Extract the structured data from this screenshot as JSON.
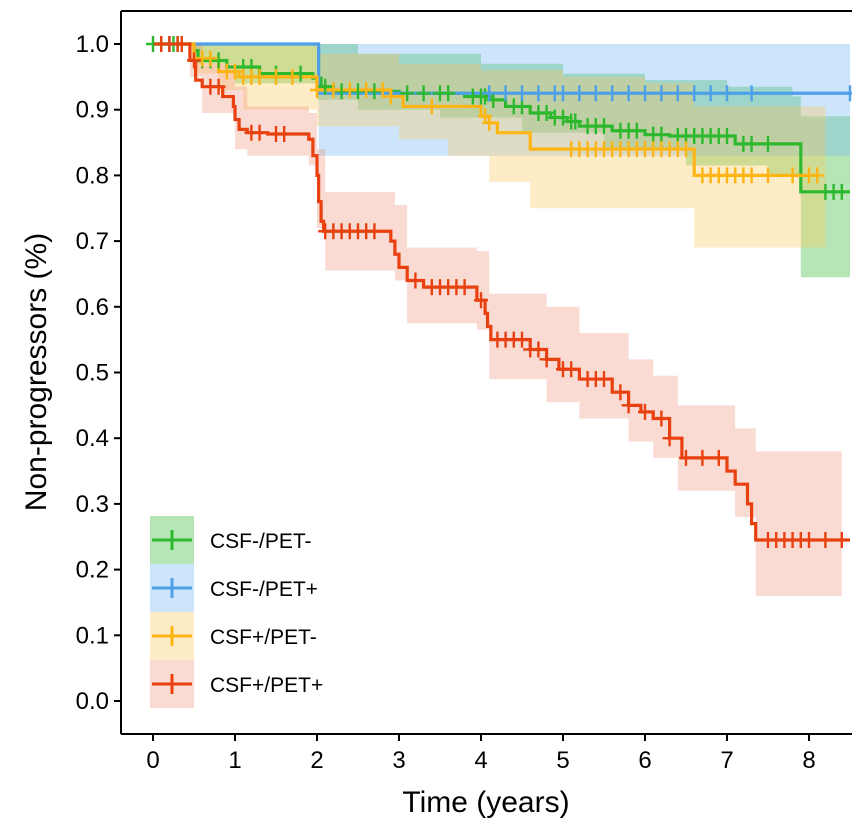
{
  "chart_data": {
    "type": "line",
    "subtype": "kaplan-meier survival curves with 95% confidence bands and censor marks",
    "title": "",
    "xlabel": "Time (years)",
    "ylabel": "Non-progressors (%)",
    "xlim": [
      -0.4,
      8.5
    ],
    "ylim": [
      -0.04,
      1.05
    ],
    "xticks": [
      0,
      1,
      2,
      3,
      4,
      5,
      6,
      7,
      8
    ],
    "xtick_labels": [
      "0",
      "1",
      "2",
      "3",
      "4",
      "5",
      "6",
      "7",
      "8"
    ],
    "yticks": [
      0.0,
      0.1,
      0.2,
      0.3,
      0.4,
      0.5,
      0.6,
      0.7,
      0.8,
      0.9,
      1.0
    ],
    "ytick_labels": [
      "0.0",
      "0.1",
      "0.2",
      "0.3",
      "0.4",
      "0.5",
      "0.6",
      "0.7",
      "0.8",
      "0.9",
      "1.0"
    ],
    "grid": false,
    "legend_position": "bottom-left",
    "series": [
      {
        "name": "CSF-/PET-",
        "color": "#2DB82D",
        "band_color": "#2DB82D",
        "steps": [
          [
            0,
            1.0
          ],
          [
            0.5,
            0.99
          ],
          [
            0.55,
            0.975
          ],
          [
            0.9,
            0.965
          ],
          [
            1.3,
            0.955
          ],
          [
            1.95,
            0.948
          ],
          [
            2.05,
            0.935
          ],
          [
            2.2,
            0.928
          ],
          [
            3.0,
            0.925
          ],
          [
            3.8,
            0.92
          ],
          [
            4.1,
            0.915
          ],
          [
            4.3,
            0.905
          ],
          [
            4.6,
            0.895
          ],
          [
            4.85,
            0.888
          ],
          [
            5.05,
            0.882
          ],
          [
            5.2,
            0.875
          ],
          [
            5.6,
            0.868
          ],
          [
            6.0,
            0.862
          ],
          [
            6.3,
            0.86
          ],
          [
            7.1,
            0.848
          ],
          [
            7.9,
            0.775
          ],
          [
            8.5,
            0.775
          ]
        ],
        "upper": [
          [
            0,
            1.0
          ],
          [
            0.5,
            1.0
          ],
          [
            2.0,
            1.0
          ],
          [
            2.5,
            0.985
          ],
          [
            4.0,
            0.97
          ],
          [
            5.0,
            0.955
          ],
          [
            6.0,
            0.945
          ],
          [
            7.0,
            0.935
          ],
          [
            7.8,
            0.92
          ],
          [
            7.9,
            0.89
          ],
          [
            8.5,
            0.89
          ]
        ],
        "lower": [
          [
            0,
            1.0
          ],
          [
            0.5,
            0.97
          ],
          [
            1.0,
            0.94
          ],
          [
            2.0,
            0.915
          ],
          [
            2.5,
            0.9
          ],
          [
            3.5,
            0.888
          ],
          [
            4.5,
            0.865
          ],
          [
            5.5,
            0.84
          ],
          [
            6.5,
            0.815
          ],
          [
            7.5,
            0.8
          ],
          [
            7.9,
            0.645
          ],
          [
            8.5,
            0.645
          ]
        ],
        "censors": [
          0,
          0.1,
          0.2,
          0.25,
          0.3,
          0.6,
          0.7,
          0.8,
          1.1,
          1.2,
          1.5,
          1.8,
          2.1,
          2.3,
          2.5,
          2.7,
          3.1,
          3.3,
          3.5,
          3.6,
          3.9,
          4.0,
          4.05,
          4.15,
          4.4,
          4.5,
          4.7,
          4.8,
          4.9,
          5.0,
          5.1,
          5.15,
          5.3,
          5.4,
          5.5,
          5.7,
          5.8,
          5.9,
          6.1,
          6.2,
          6.4,
          6.5,
          6.6,
          6.7,
          6.8,
          6.9,
          7.0,
          7.2,
          7.3,
          7.5,
          8.2,
          8.3,
          8.4
        ]
      },
      {
        "name": "CSF-/PET+",
        "color": "#4DA0E8",
        "band_color": "#6FB4F0",
        "steps": [
          [
            0,
            1.0
          ],
          [
            2.0,
            1.0
          ],
          [
            2.02,
            0.925
          ],
          [
            8.5,
            0.925
          ]
        ],
        "upper": [
          [
            0,
            1.0
          ],
          [
            8.5,
            1.0
          ]
        ],
        "lower": [
          [
            0,
            1.0
          ],
          [
            2.0,
            1.0
          ],
          [
            2.02,
            0.83
          ],
          [
            8.5,
            0.83
          ]
        ],
        "censors": [
          0.2,
          4.1,
          4.3,
          4.5,
          4.7,
          4.9,
          5.0,
          5.2,
          5.4,
          5.6,
          5.8,
          6.0,
          6.2,
          6.4,
          6.6,
          6.8,
          7.0,
          7.3,
          8.5
        ]
      },
      {
        "name": "CSF+/PET-",
        "color": "#FDB515",
        "band_color": "#FDC95C",
        "steps": [
          [
            0,
            1.0
          ],
          [
            0.5,
            0.978
          ],
          [
            0.8,
            0.958
          ],
          [
            1.05,
            0.95
          ],
          [
            2.0,
            0.93
          ],
          [
            2.9,
            0.92
          ],
          [
            3.05,
            0.905
          ],
          [
            4.0,
            0.89
          ],
          [
            4.1,
            0.88
          ],
          [
            4.2,
            0.865
          ],
          [
            4.6,
            0.84
          ],
          [
            5.15,
            0.84
          ],
          [
            6.6,
            0.8
          ],
          [
            8.1,
            0.8
          ]
        ],
        "upper": [
          [
            0,
            1.0
          ],
          [
            0.5,
            1.0
          ],
          [
            2.0,
            0.985
          ],
          [
            3.0,
            0.97
          ],
          [
            4.0,
            0.96
          ],
          [
            5.0,
            0.95
          ],
          [
            6.0,
            0.94
          ],
          [
            6.6,
            0.905
          ],
          [
            8.2,
            0.905
          ]
        ],
        "lower": [
          [
            0,
            1.0
          ],
          [
            0.5,
            0.955
          ],
          [
            0.8,
            0.93
          ],
          [
            1.1,
            0.9
          ],
          [
            2.0,
            0.875
          ],
          [
            3.0,
            0.855
          ],
          [
            3.6,
            0.83
          ],
          [
            4.1,
            0.79
          ],
          [
            4.6,
            0.75
          ],
          [
            5.2,
            0.75
          ],
          [
            6.6,
            0.69
          ],
          [
            8.2,
            0.69
          ]
        ],
        "censors": [
          0.6,
          0.7,
          0.9,
          1.0,
          1.1,
          1.2,
          1.3,
          1.5,
          1.7,
          2.0,
          2.2,
          2.4,
          2.6,
          2.8,
          2.9,
          3.4,
          4.05,
          4.1,
          5.1,
          5.2,
          5.3,
          5.4,
          5.5,
          5.6,
          5.7,
          5.8,
          5.9,
          6.0,
          6.1,
          6.2,
          6.3,
          6.4,
          6.5,
          6.7,
          6.8,
          6.9,
          7.0,
          7.1,
          7.2,
          7.3,
          7.5,
          7.8,
          8.0,
          8.1
        ]
      },
      {
        "name": "CSF+/PET+",
        "color": "#E8400F",
        "band_color": "#F29780",
        "steps": [
          [
            0,
            1.0
          ],
          [
            0.45,
            0.975
          ],
          [
            0.52,
            0.945
          ],
          [
            0.6,
            0.935
          ],
          [
            0.85,
            0.92
          ],
          [
            0.98,
            0.905
          ],
          [
            1.0,
            0.885
          ],
          [
            1.05,
            0.87
          ],
          [
            1.15,
            0.865
          ],
          [
            1.4,
            0.863
          ],
          [
            1.9,
            0.855
          ],
          [
            1.95,
            0.83
          ],
          [
            2.0,
            0.8
          ],
          [
            2.02,
            0.76
          ],
          [
            2.05,
            0.73
          ],
          [
            2.08,
            0.715
          ],
          [
            2.9,
            0.7
          ],
          [
            2.95,
            0.68
          ],
          [
            3.0,
            0.66
          ],
          [
            3.1,
            0.64
          ],
          [
            3.3,
            0.63
          ],
          [
            3.9,
            0.63
          ],
          [
            3.95,
            0.61
          ],
          [
            4.05,
            0.59
          ],
          [
            4.08,
            0.57
          ],
          [
            4.12,
            0.55
          ],
          [
            4.6,
            0.535
          ],
          [
            4.8,
            0.52
          ],
          [
            4.95,
            0.505
          ],
          [
            5.2,
            0.49
          ],
          [
            5.6,
            0.47
          ],
          [
            5.8,
            0.45
          ],
          [
            5.95,
            0.44
          ],
          [
            6.1,
            0.43
          ],
          [
            6.3,
            0.4
          ],
          [
            6.45,
            0.37
          ],
          [
            7.0,
            0.35
          ],
          [
            7.1,
            0.33
          ],
          [
            7.25,
            0.3
          ],
          [
            7.3,
            0.27
          ],
          [
            7.35,
            0.245
          ],
          [
            8.5,
            0.245
          ]
        ],
        "upper": [
          [
            0,
            1.0
          ],
          [
            0.45,
            1.0
          ],
          [
            0.6,
            0.97
          ],
          [
            1.0,
            0.935
          ],
          [
            1.15,
            0.905
          ],
          [
            1.9,
            0.895
          ],
          [
            2.0,
            0.84
          ],
          [
            2.1,
            0.775
          ],
          [
            2.95,
            0.755
          ],
          [
            3.1,
            0.69
          ],
          [
            3.95,
            0.685
          ],
          [
            4.1,
            0.62
          ],
          [
            4.8,
            0.6
          ],
          [
            5.2,
            0.56
          ],
          [
            5.8,
            0.52
          ],
          [
            6.1,
            0.495
          ],
          [
            6.4,
            0.45
          ],
          [
            7.1,
            0.415
          ],
          [
            7.35,
            0.38
          ],
          [
            8.4,
            0.38
          ]
        ],
        "lower": [
          [
            0,
            1.0
          ],
          [
            0.45,
            0.95
          ],
          [
            0.6,
            0.895
          ],
          [
            1.0,
            0.84
          ],
          [
            1.15,
            0.83
          ],
          [
            1.9,
            0.815
          ],
          [
            2.0,
            0.72
          ],
          [
            2.1,
            0.655
          ],
          [
            2.95,
            0.64
          ],
          [
            3.1,
            0.575
          ],
          [
            3.95,
            0.565
          ],
          [
            4.1,
            0.49
          ],
          [
            4.8,
            0.455
          ],
          [
            5.2,
            0.43
          ],
          [
            5.8,
            0.395
          ],
          [
            6.1,
            0.37
          ],
          [
            6.4,
            0.32
          ],
          [
            7.1,
            0.28
          ],
          [
            7.35,
            0.16
          ],
          [
            8.4,
            0.16
          ]
        ],
        "censors": [
          0.1,
          0.2,
          0.3,
          0.35,
          0.5,
          0.7,
          0.8,
          1.2,
          1.3,
          1.5,
          1.6,
          2.1,
          2.2,
          2.3,
          2.4,
          2.5,
          2.6,
          2.7,
          3.2,
          3.4,
          3.5,
          3.6,
          3.7,
          3.8,
          4.0,
          4.2,
          4.3,
          4.4,
          4.5,
          4.6,
          4.7,
          4.8,
          5.0,
          5.1,
          5.3,
          5.4,
          5.5,
          5.7,
          5.8,
          6.0,
          6.2,
          6.3,
          6.5,
          6.7,
          6.9,
          7.5,
          7.6,
          7.7,
          7.8,
          7.9,
          8.0,
          8.2,
          8.4
        ]
      }
    ],
    "legend": [
      {
        "label": "CSF-/PET-",
        "color": "#2DB82D",
        "band_color": "#2DB82D"
      },
      {
        "label": "CSF-/PET+",
        "color": "#4DA0E8",
        "band_color": "#6FB4F0"
      },
      {
        "label": "CSF+/PET-",
        "color": "#FDB515",
        "band_color": "#FDC95C"
      },
      {
        "label": "CSF+/PET+",
        "color": "#E8400F",
        "band_color": "#F29780"
      }
    ]
  }
}
